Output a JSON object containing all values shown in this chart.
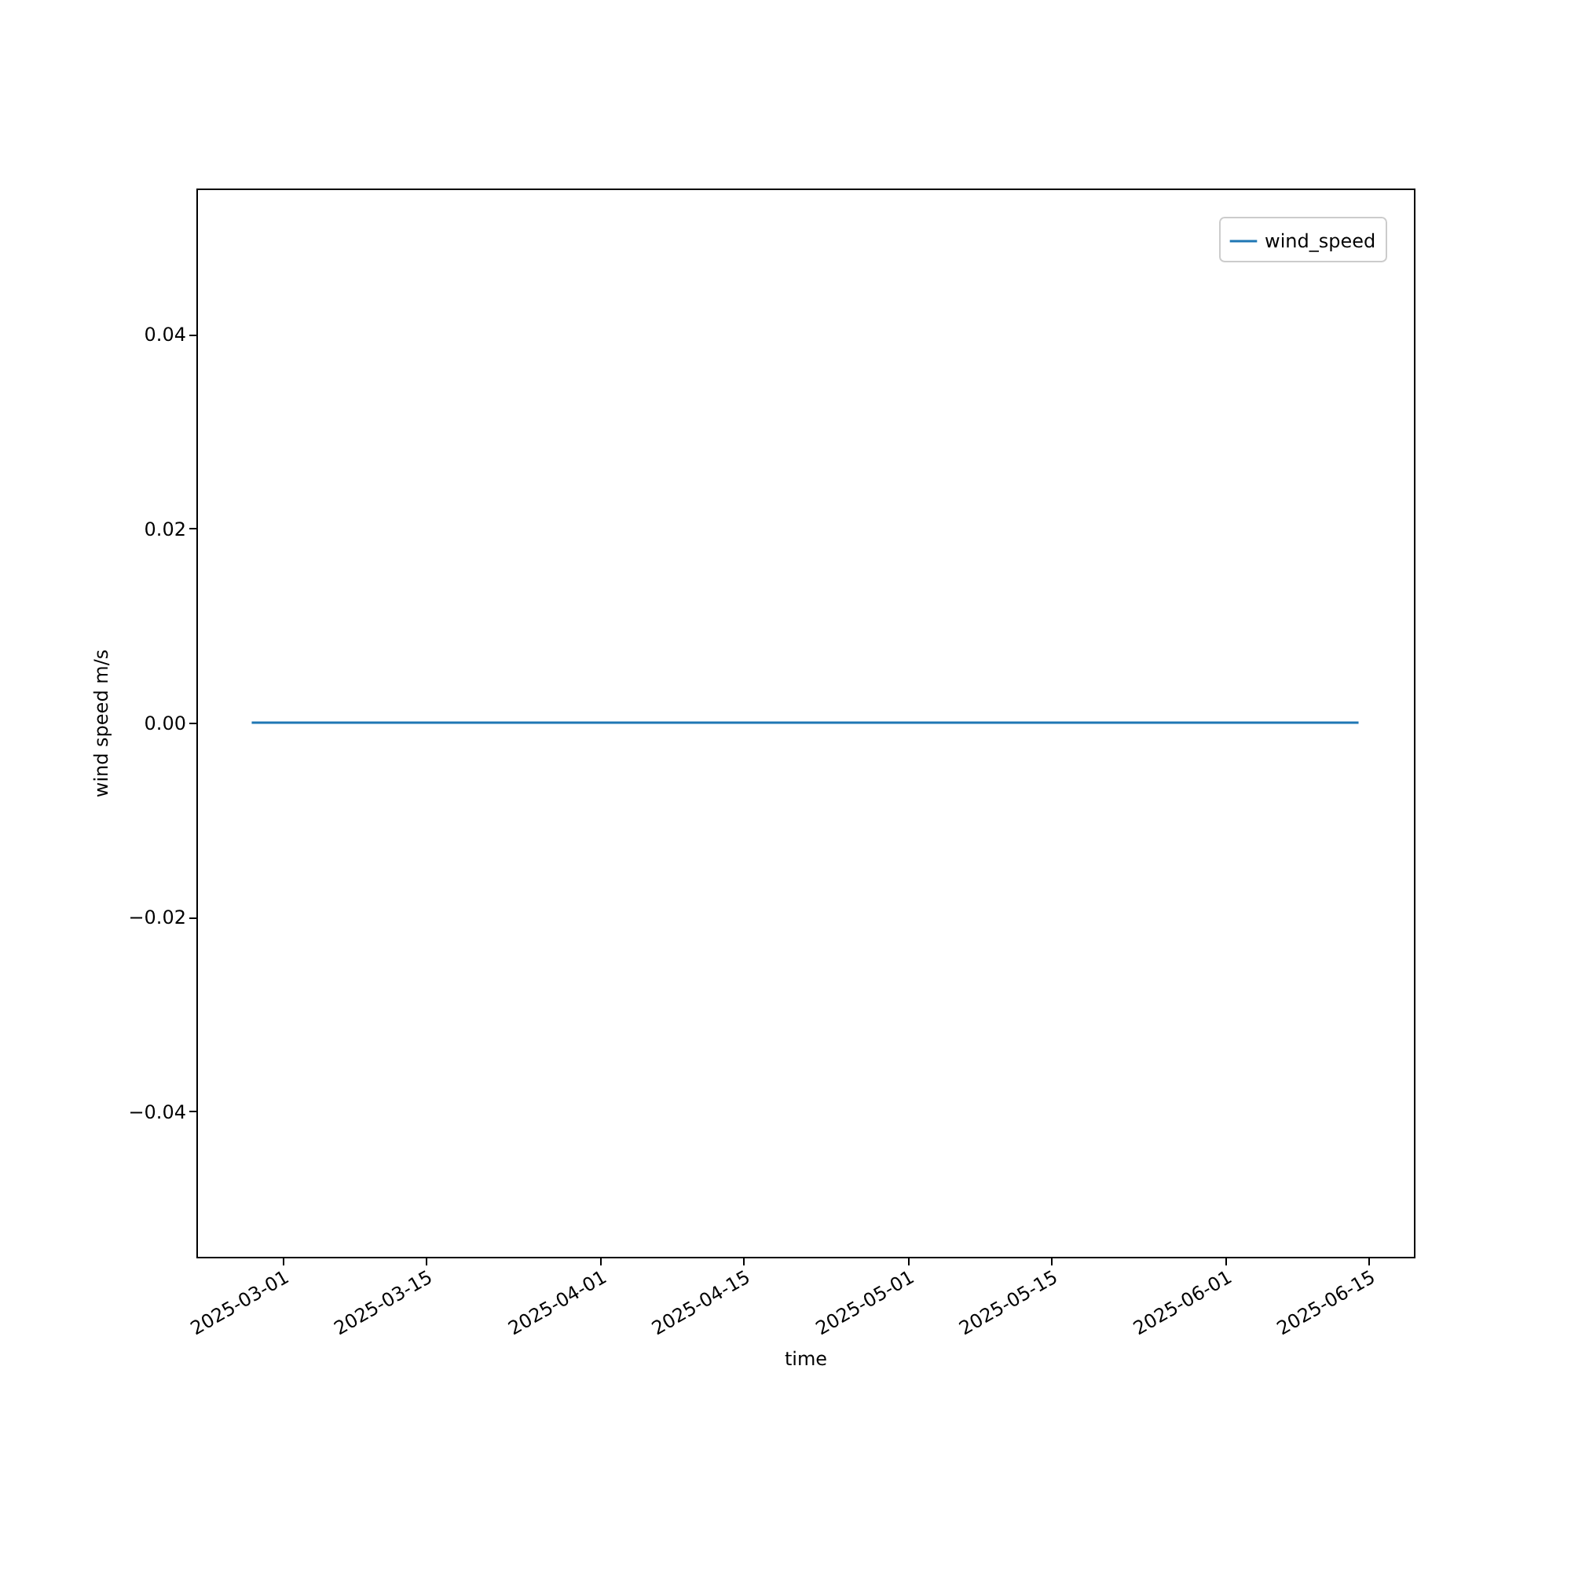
{
  "chart_data": {
    "type": "line",
    "xlabel": "time",
    "ylabel": "wind speed m/s",
    "x": [
      "2025-02-26",
      "2025-06-14"
    ],
    "series": [
      {
        "name": "wind_speed",
        "color": "#1f77b4",
        "values": [
          0,
          0
        ]
      }
    ],
    "xlim": [
      "2025-02-20T14:24",
      "2025-06-19T09:36"
    ],
    "xticks": [
      "2025-03-01",
      "2025-03-15",
      "2025-04-01",
      "2025-04-15",
      "2025-05-01",
      "2025-05-15",
      "2025-06-01",
      "2025-06-15"
    ],
    "ylim": [
      -0.055,
      0.055
    ],
    "yticks": [
      {
        "value": -0.04,
        "label": "−0.04"
      },
      {
        "value": -0.02,
        "label": "−0.02"
      },
      {
        "value": 0,
        "label": "0.00"
      },
      {
        "value": 0.02,
        "label": "0.02"
      },
      {
        "value": 0.04,
        "label": "0.04"
      }
    ],
    "legend": "top right"
  }
}
